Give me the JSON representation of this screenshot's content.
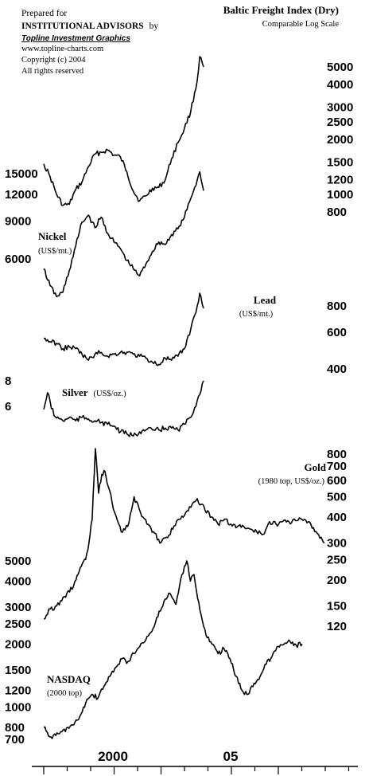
{
  "header": {
    "prepared_for": "Prepared for",
    "client": "INSTITUTIONAL ADVISORS",
    "by": "by",
    "publisher": "Topline Investment Graphics",
    "website": "www.topline-charts.com",
    "copyright": "Copyright (c) 2004",
    "rights": "All rights reserved"
  },
  "chart_data": {
    "type": "line",
    "x_ticks": [
      "2000",
      "05"
    ],
    "log_scale": true,
    "series": [
      {
        "name": "Baltic Freight Index (Dry)",
        "subtitle": "Comparable Log Scale",
        "axis_side": "right",
        "axis_ticks": [
          "5000",
          "4000",
          "3000",
          "2500",
          "2000",
          "1500",
          "1200",
          "1000",
          "800"
        ],
        "color": "#000000",
        "values": [
          [
            1998.0,
            1470
          ],
          [
            1998.25,
            1250
          ],
          [
            1998.5,
            1000
          ],
          [
            1998.75,
            870
          ],
          [
            1999.0,
            880
          ],
          [
            1999.25,
            1060
          ],
          [
            1999.5,
            1170
          ],
          [
            1999.75,
            1420
          ],
          [
            2000.0,
            1660
          ],
          [
            2000.25,
            1700
          ],
          [
            2000.5,
            1750
          ],
          [
            2000.75,
            1640
          ],
          [
            2001.0,
            1600
          ],
          [
            2001.25,
            1330
          ],
          [
            2001.5,
            1040
          ],
          [
            2001.75,
            920
          ],
          [
            2002.0,
            980
          ],
          [
            2002.25,
            1080
          ],
          [
            2002.5,
            1090
          ],
          [
            2002.75,
            1200
          ],
          [
            2003.0,
            1570
          ],
          [
            2003.25,
            1920
          ],
          [
            2003.5,
            2300
          ],
          [
            2003.75,
            2850
          ],
          [
            2004.0,
            4200
          ],
          [
            2004.1,
            5700
          ],
          [
            2004.25,
            5000
          ]
        ]
      },
      {
        "name": "Nickel",
        "unit": "(US$/mt.)",
        "axis_side": "left",
        "axis_ticks": [
          "15000",
          "12000",
          "9000",
          "6000"
        ],
        "color": "#000000",
        "values": [
          [
            1998.0,
            5400
          ],
          [
            1998.25,
            4500
          ],
          [
            1998.5,
            4000
          ],
          [
            1998.75,
            4200
          ],
          [
            1999.0,
            5300
          ],
          [
            1999.25,
            6900
          ],
          [
            1999.5,
            8900
          ],
          [
            1999.75,
            9600
          ],
          [
            2000.0,
            8400
          ],
          [
            2000.25,
            9400
          ],
          [
            2000.5,
            7900
          ],
          [
            2000.75,
            7200
          ],
          [
            2001.0,
            6700
          ],
          [
            2001.25,
            5900
          ],
          [
            2001.5,
            5400
          ],
          [
            2001.75,
            5000
          ],
          [
            2002.0,
            5700
          ],
          [
            2002.25,
            6500
          ],
          [
            2002.5,
            7200
          ],
          [
            2002.75,
            7000
          ],
          [
            2003.0,
            7800
          ],
          [
            2003.25,
            8300
          ],
          [
            2003.5,
            9400
          ],
          [
            2003.75,
            11500
          ],
          [
            2004.0,
            14000
          ],
          [
            2004.1,
            15300
          ],
          [
            2004.25,
            12500
          ]
        ]
      },
      {
        "name": "Lead",
        "unit": "(US$/mt.)",
        "axis_side": "right",
        "axis_ticks": [
          "800",
          "600",
          "400"
        ],
        "color": "#000000",
        "values": [
          [
            1998.0,
            560
          ],
          [
            1998.25,
            540
          ],
          [
            1998.5,
            530
          ],
          [
            1998.75,
            500
          ],
          [
            1999.0,
            510
          ],
          [
            1999.25,
            500
          ],
          [
            1999.5,
            470
          ],
          [
            1999.75,
            440
          ],
          [
            2000.0,
            470
          ],
          [
            2000.25,
            480
          ],
          [
            2000.5,
            460
          ],
          [
            2000.75,
            470
          ],
          [
            2001.0,
            480
          ],
          [
            2001.25,
            480
          ],
          [
            2001.5,
            470
          ],
          [
            2001.75,
            460
          ],
          [
            2002.0,
            450
          ],
          [
            2002.25,
            430
          ],
          [
            2002.5,
            420
          ],
          [
            2002.75,
            450
          ],
          [
            2003.0,
            440
          ],
          [
            2003.25,
            460
          ],
          [
            2003.5,
            500
          ],
          [
            2003.75,
            620
          ],
          [
            2004.0,
            800
          ],
          [
            2004.1,
            920
          ],
          [
            2004.25,
            780
          ]
        ]
      },
      {
        "name": "Silver",
        "unit": "(US$/oz.)",
        "axis_side": "left",
        "axis_ticks": [
          "8",
          "6"
        ],
        "color": "#000000",
        "values": [
          [
            1998.0,
            5.8
          ],
          [
            1998.15,
            7.0
          ],
          [
            1998.4,
            5.4
          ],
          [
            1998.75,
            5.1
          ],
          [
            1999.0,
            5.3
          ],
          [
            1999.25,
            5.1
          ],
          [
            1999.5,
            5.3
          ],
          [
            1999.75,
            5.2
          ],
          [
            2000.0,
            5.1
          ],
          [
            2000.25,
            5.0
          ],
          [
            2000.5,
            4.9
          ],
          [
            2000.75,
            4.8
          ],
          [
            2001.0,
            4.5
          ],
          [
            2001.25,
            4.4
          ],
          [
            2001.5,
            4.3
          ],
          [
            2001.75,
            4.5
          ],
          [
            2002.0,
            4.6
          ],
          [
            2002.25,
            4.6
          ],
          [
            2002.5,
            4.6
          ],
          [
            2002.75,
            4.7
          ],
          [
            2003.0,
            4.7
          ],
          [
            2003.25,
            4.6
          ],
          [
            2003.5,
            4.9
          ],
          [
            2003.75,
            5.3
          ],
          [
            2004.0,
            6.4
          ],
          [
            2004.25,
            8.0
          ]
        ]
      },
      {
        "name": "Gold",
        "unit": "(1980 top, US$/oz.)",
        "axis_side": "right",
        "axis_ticks": [
          "800",
          "700",
          "600",
          "500",
          "400",
          "300",
          "250",
          "200",
          "150",
          "120"
        ],
        "color": "#000000",
        "values": [
          [
            1976.0,
            130
          ],
          [
            1976.5,
            145
          ],
          [
            1977.0,
            150
          ],
          [
            1977.5,
            165
          ],
          [
            1978.0,
            175
          ],
          [
            1978.5,
            200
          ],
          [
            1978.75,
            220
          ],
          [
            1979.0,
            240
          ],
          [
            1979.25,
            250
          ],
          [
            1979.5,
            300
          ],
          [
            1979.75,
            390
          ],
          [
            1980.0,
            850
          ],
          [
            1980.25,
            520
          ],
          [
            1980.5,
            640
          ],
          [
            1980.75,
            660
          ],
          [
            1981.0,
            560
          ],
          [
            1981.5,
            420
          ],
          [
            1982.0,
            340
          ],
          [
            1982.5,
            360
          ],
          [
            1983.0,
            500
          ],
          [
            1983.5,
            420
          ],
          [
            1984.0,
            370
          ],
          [
            1984.5,
            340
          ],
          [
            1985.0,
            300
          ],
          [
            1985.5,
            320
          ],
          [
            1986.0,
            350
          ],
          [
            1986.5,
            390
          ],
          [
            1987.0,
            420
          ],
          [
            1987.5,
            460
          ],
          [
            1987.9,
            490
          ],
          [
            1988.5,
            430
          ],
          [
            1989.0,
            400
          ],
          [
            1989.5,
            370
          ],
          [
            1990.0,
            390
          ],
          [
            1990.5,
            370
          ],
          [
            1991.0,
            360
          ],
          [
            1991.5,
            360
          ],
          [
            1992.0,
            350
          ],
          [
            1992.5,
            340
          ],
          [
            1993.0,
            330
          ],
          [
            1993.5,
            380
          ],
          [
            1994.0,
            370
          ],
          [
            1994.5,
            380
          ],
          [
            1995.0,
            380
          ],
          [
            1995.5,
            385
          ],
          [
            1996.0,
            390
          ],
          [
            1996.5,
            380
          ],
          [
            1997.0,
            340
          ],
          [
            1997.5,
            320
          ],
          [
            1997.75,
            300
          ]
        ]
      },
      {
        "name": "NASDAQ",
        "unit": "(2000 top)",
        "axis_side": "left",
        "axis_ticks": [
          "5000",
          "4000",
          "3000",
          "2500",
          "2000",
          "1500",
          "1200",
          "1000",
          "800",
          "700"
        ],
        "color": "#000000",
        "values": [
          [
            1976.0,
            800
          ],
          [
            1976.5,
            720
          ],
          [
            1977.0,
            730
          ],
          [
            1977.5,
            760
          ],
          [
            1978.0,
            800
          ],
          [
            1978.5,
            820
          ],
          [
            1979.0,
            900
          ],
          [
            1979.5,
            1050
          ],
          [
            1980.0,
            1150
          ],
          [
            1980.5,
            1100
          ],
          [
            1981.0,
            1250
          ],
          [
            1981.5,
            1400
          ],
          [
            1982.0,
            1550
          ],
          [
            1982.5,
            1700
          ],
          [
            1983.0,
            1650
          ],
          [
            1983.5,
            1800
          ],
          [
            1984.0,
            1950
          ],
          [
            1984.5,
            2100
          ],
          [
            1985.0,
            2300
          ],
          [
            1985.5,
            2700
          ],
          [
            1986.0,
            3200
          ],
          [
            1986.5,
            3500
          ],
          [
            1987.0,
            3100
          ],
          [
            1987.5,
            4300
          ],
          [
            1987.9,
            5000
          ],
          [
            1988.2,
            4000
          ],
          [
            1988.5,
            4300
          ],
          [
            1989.0,
            2900
          ],
          [
            1989.5,
            2200
          ],
          [
            1990.0,
            2000
          ],
          [
            1990.5,
            1800
          ],
          [
            1991.0,
            1900
          ],
          [
            1991.5,
            1700
          ],
          [
            1992.0,
            1400
          ],
          [
            1992.5,
            1200
          ],
          [
            1993.0,
            1150
          ],
          [
            1993.5,
            1300
          ],
          [
            1994.0,
            1400
          ],
          [
            1994.5,
            1600
          ],
          [
            1995.0,
            1750
          ],
          [
            1995.5,
            1950
          ],
          [
            1996.0,
            2000
          ],
          [
            1996.5,
            2050
          ],
          [
            1997.0,
            1980
          ],
          [
            1997.5,
            2000
          ]
        ]
      }
    ]
  }
}
